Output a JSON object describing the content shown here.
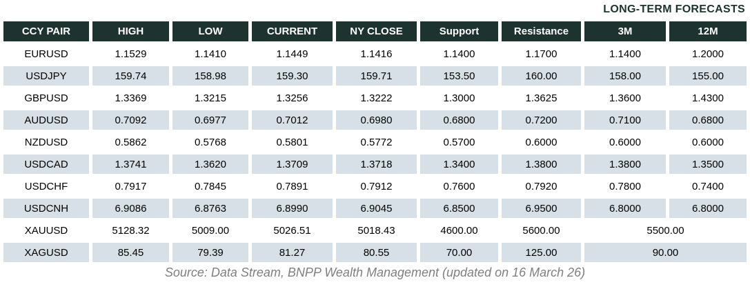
{
  "title": "LONG-TERM FORECASTS",
  "table": {
    "columns": [
      "CCY PAIR",
      "HIGH",
      "LOW",
      "CURRENT",
      "NY CLOSE",
      "Support",
      "Resistance",
      "3M",
      "12M"
    ],
    "rows": [
      {
        "pair": "EURUSD",
        "values": [
          "1.1529",
          "1.1410",
          "1.1449",
          "1.1416",
          "1.1400",
          "1.1700",
          "1.1400",
          "1.2000"
        ]
      },
      {
        "pair": "USDJPY",
        "values": [
          "159.74",
          "158.98",
          "159.30",
          "159.71",
          "153.50",
          "160.00",
          "158.00",
          "155.00"
        ]
      },
      {
        "pair": "GBPUSD",
        "values": [
          "1.3369",
          "1.3215",
          "1.3256",
          "1.3222",
          "1.3000",
          "1.3625",
          "1.3600",
          "1.4300"
        ]
      },
      {
        "pair": "AUDUSD",
        "values": [
          "0.7092",
          "0.6977",
          "0.7012",
          "0.6980",
          "0.6800",
          "0.7200",
          "0.7100",
          "0.6800"
        ]
      },
      {
        "pair": "NZDUSD",
        "values": [
          "0.5862",
          "0.5768",
          "0.5801",
          "0.5772",
          "0.5700",
          "0.6000",
          "0.6000",
          "0.6000"
        ]
      },
      {
        "pair": "USDCAD",
        "values": [
          "1.3741",
          "1.3620",
          "1.3709",
          "1.3718",
          "1.3400",
          "1.3800",
          "1.3800",
          "1.3500"
        ]
      },
      {
        "pair": "USDCHF",
        "values": [
          "0.7917",
          "0.7845",
          "0.7891",
          "0.7912",
          "0.7600",
          "0.7920",
          "0.7800",
          "0.7400"
        ]
      },
      {
        "pair": "USDCNH",
        "values": [
          "6.9086",
          "6.8763",
          "6.8990",
          "6.9045",
          "6.8500",
          "6.9500",
          "6.8000",
          "6.8000"
        ]
      },
      {
        "pair": "XAUUSD",
        "values": [
          "5128.32",
          "5009.00",
          "5026.51",
          "5018.43",
          "4600.00",
          "5600.00"
        ],
        "forecast": "5500.00"
      },
      {
        "pair": "XAGUSD",
        "values": [
          "85.45",
          "79.39",
          "81.27",
          "80.55",
          "70.00",
          "125.00"
        ],
        "forecast": "90.00"
      }
    ]
  },
  "footer": {
    "source": "Source: Data Stream, BNPP Wealth Management (updated on 16 March 26)"
  },
  "colors": {
    "header_bg": "#1d332f",
    "header_text": "#ffffff",
    "row_alt_bg": "#d6e0e6",
    "title_text": "#1d332f",
    "footer_text": "#7f7f7f"
  }
}
